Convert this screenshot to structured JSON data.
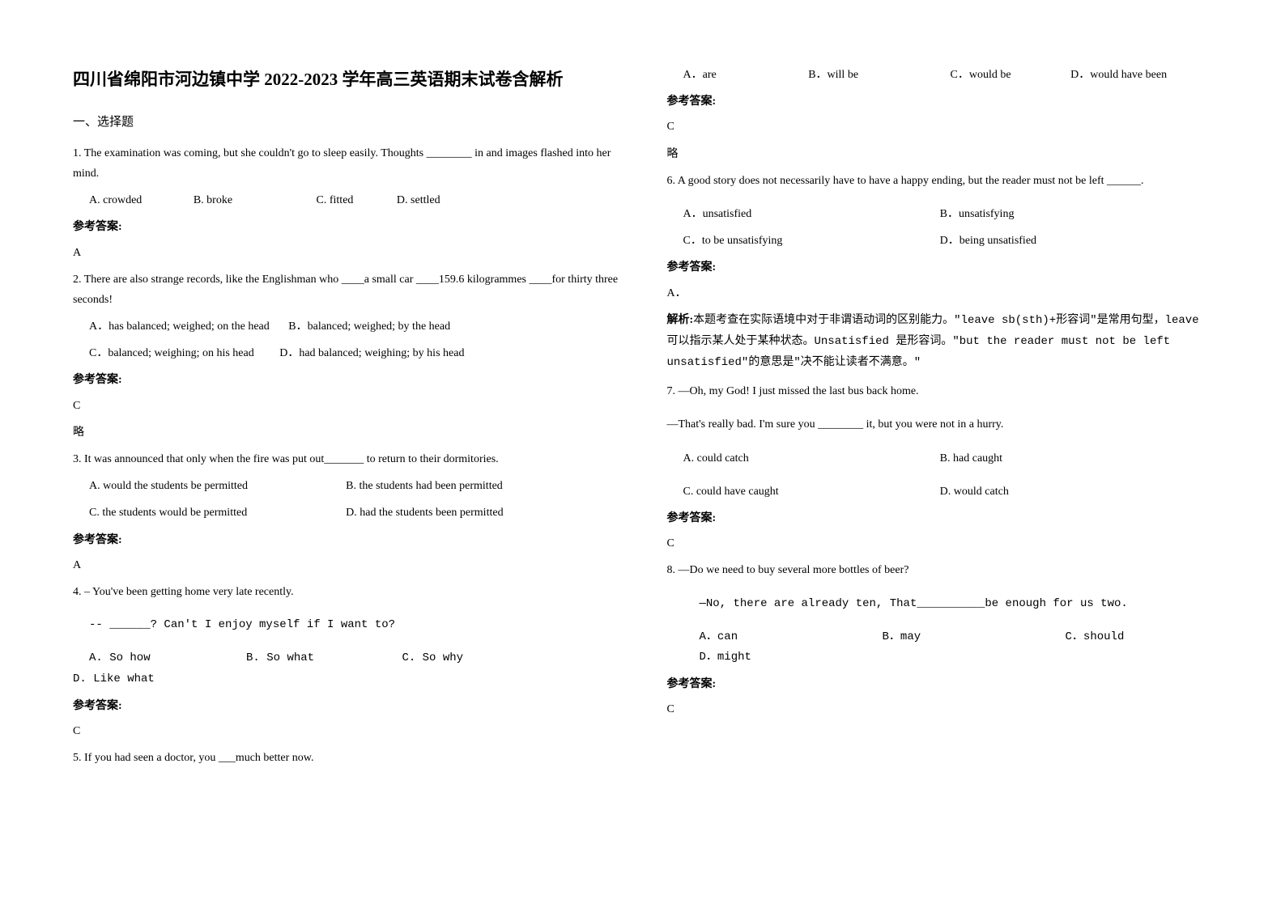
{
  "title": "四川省绵阳市河边镇中学 2022-2023 学年高三英语期末试卷含解析",
  "section1_header": "一、选择题",
  "answer_label": "参考答案:",
  "omit": "略",
  "explanation_label": "解析:",
  "q1": {
    "text": "1. The examination was coming, but she couldn't go to sleep easily. Thoughts ________ in and images flashed into her mind.",
    "a": "A. crowded",
    "b": "B. broke",
    "c": "C. fitted",
    "d": "D. settled",
    "answer": "A"
  },
  "q2": {
    "text": "2. There are also strange records, like the Englishman who ____a small car ____159.6 kilogrammes ____for thirty three seconds!",
    "a": "A．has balanced; weighed; on the head",
    "b": "B．balanced; weighed; by the head",
    "c": "C．balanced; weighing; on his head",
    "d": "D．had balanced; weighing; by his head",
    "answer": "C"
  },
  "q3": {
    "text": "3. It was announced that only when the fire was put out_______ to return to their dormitories.",
    "a": "A. would the students be permitted",
    "b": "B. the students had been permitted",
    "c": "C. the students would be permitted",
    "d": "D. had the students been permitted",
    "answer": "A"
  },
  "q4": {
    "text": "4. – You've been getting home very late recently.",
    "text2": "-- ______? Can't I enjoy myself if I want to?",
    "a": "A. So how",
    "b": "B. So what",
    "c": "C. So why",
    "d": "D. Like what",
    "answer": "C"
  },
  "q5": {
    "text": "5. If you had seen a doctor, you ___much better now.",
    "a": "A．are",
    "b": "B．will be",
    "c": "C．would be",
    "d": "D．would have been",
    "answer": "C"
  },
  "q6": {
    "text": "6. A good story does not necessarily have to have a happy ending, but the reader must not be  left ______.",
    "a": "A．unsatisfied",
    "b": "B．unsatisfying",
    "c": "C．to be unsatisfying",
    "d": "D．being unsatisfied",
    "answer": "A．",
    "explanation": "本题考查在实际语境中对于非谓语动词的区别能力。\"leave sb(sth)+形容词\"是常用句型，leave 可以指示某人处于某种状态。Unsatisfied 是形容词。\"but the reader must not be left unsatisfied\"的意思是\"决不能让读者不满意。\""
  },
  "q7": {
    "text": "7. —Oh, my God! I just missed the last bus back home.",
    "text2": "—That's really bad. I'm sure you ________ it, but you were not in a hurry.",
    "a": "A. could catch",
    "b": "B. had caught",
    "c": "C. could have caught",
    "d": "D. would catch",
    "answer": "C"
  },
  "q8": {
    "text": "8. —Do we need to buy several more bottles of beer?",
    "text2": "—No, there are already ten, That__________be enough for us two.",
    "a": "A．can",
    "b": "B．may",
    "c": "C．should",
    "d": "D．might",
    "answer": "C"
  }
}
